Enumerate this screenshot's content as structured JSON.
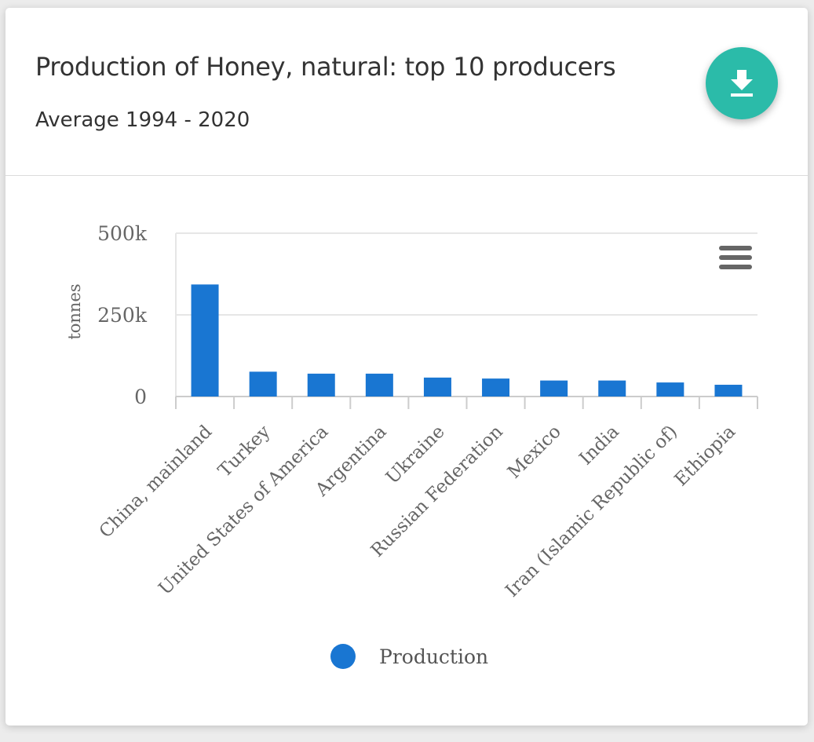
{
  "header": {
    "title": "Production of Honey, natural: top 10 producers",
    "subtitle": "Average 1994 - 2020"
  },
  "download_icon": "download-icon",
  "menu_icon": "hamburger-menu-icon",
  "colors": {
    "accent": "#2bbba9",
    "bar": "#1976d2"
  },
  "chart_data": {
    "type": "bar",
    "categories": [
      "China, mainland",
      "Turkey",
      "United States of America",
      "Argentina",
      "Ukraine",
      "Russian Federation",
      "Mexico",
      "India",
      "Iran (Islamic Republic of)",
      "Ethiopia"
    ],
    "series": [
      {
        "name": "Production",
        "values": [
          343000,
          76000,
          70000,
          70000,
          58000,
          55000,
          49000,
          49000,
          43000,
          36000
        ]
      }
    ],
    "ylabel": "tonnes",
    "ylim": [
      0,
      500000
    ],
    "yticks": [
      0,
      250000,
      500000
    ],
    "ytick_labels": [
      "0",
      "250k",
      "500k"
    ],
    "grid": true,
    "legend": "bottom-center"
  }
}
